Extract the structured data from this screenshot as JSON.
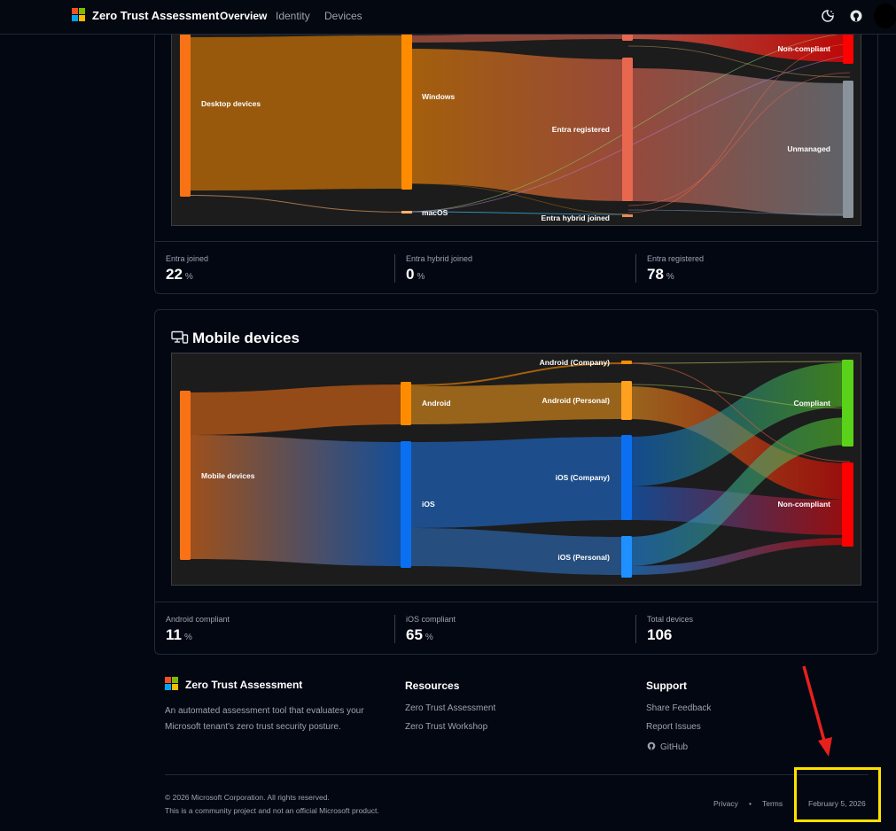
{
  "nav": {
    "brand": "Zero Trust Assessment",
    "items": [
      "Overview",
      "Identity",
      "Devices"
    ],
    "theme_icon": "theme-toggle-icon",
    "github_icon": "github-icon"
  },
  "desktop": {
    "nodes": {
      "desktop_devices": "Desktop devices",
      "windows": "Windows",
      "macos": "macOS",
      "entra_registered": "Entra registered",
      "entra_hybrid_joined": "Entra hybrid joined",
      "non_compliant": "Non-compliant",
      "unmanaged": "Unmanaged"
    },
    "stats": [
      {
        "label": "Entra joined",
        "value": "22",
        "unit": "%"
      },
      {
        "label": "Entra hybrid joined",
        "value": "0",
        "unit": "%"
      },
      {
        "label": "Entra registered",
        "value": "78",
        "unit": "%"
      }
    ]
  },
  "mobile": {
    "title": "Mobile devices",
    "icon": "devices-icon",
    "nodes": {
      "mobile_devices": "Mobile devices",
      "android": "Android",
      "ios": "iOS",
      "android_company": "Android (Company)",
      "android_personal": "Android (Personal)",
      "ios_company": "iOS (Company)",
      "ios_personal": "iOS (Personal)",
      "compliant": "Compliant",
      "non_compliant": "Non-compliant"
    },
    "stats": [
      {
        "label": "Android compliant",
        "value": "11",
        "unit": "%"
      },
      {
        "label": "iOS compliant",
        "value": "65",
        "unit": "%"
      },
      {
        "label": "Total devices",
        "value": "106",
        "unit": ""
      }
    ]
  },
  "footer": {
    "brand": "Zero Trust Assessment",
    "description": "An automated assessment tool that evaluates your Microsoft tenant's zero trust security posture.",
    "resources": {
      "heading": "Resources",
      "links": [
        "Zero Trust Assessment",
        "Zero Trust Workshop"
      ]
    },
    "support": {
      "heading": "Support",
      "links": [
        "Share Feedback",
        "Report Issues",
        "GitHub"
      ]
    },
    "copyright": "© 2026 Microsoft Corporation. All rights reserved.",
    "disclaimer": "This is a community project and not an official Microsoft product.",
    "privacy": "Privacy",
    "separator": "•",
    "terms": "Terms",
    "date": "February 5, 2026"
  },
  "colors": {
    "background": "#030712",
    "orange": "#f97316",
    "windows_orange": "#ff8c00",
    "entra_registered": "#e8674f",
    "non_compliant": "#ff0000",
    "unmanaged": "#8a929c",
    "ios_blue": "#0a6ff0",
    "compliant_green": "#59d219",
    "annotation_yellow": "#ffe000",
    "annotation_red": "#e8201c"
  }
}
